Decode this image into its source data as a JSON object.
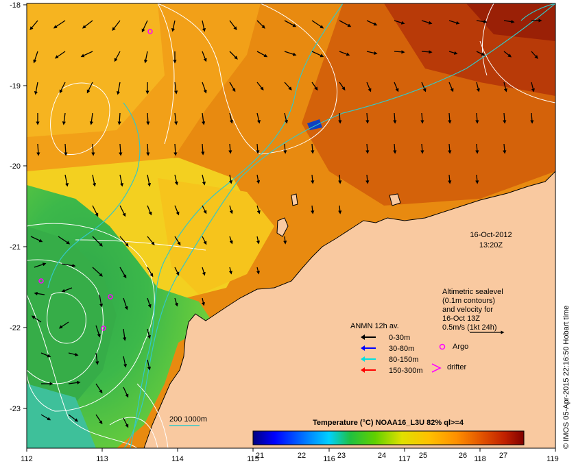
{
  "map": {
    "lon_ticks": [
      "112",
      "113",
      "114",
      "115",
      "116",
      "117",
      "118",
      "119"
    ],
    "lat_ticks": [
      "-18",
      "-19",
      "-20",
      "-21",
      "-22",
      "-23"
    ],
    "date_label": "16-Oct-2012",
    "time_label": "13:20Z",
    "credit": "© IMOS 05-Apr-2015 22:16:50 Hobart time",
    "colors": {
      "land": "#f9c9a0",
      "contour": "#ffffff",
      "isobath": "#33c8c8"
    }
  },
  "annotation": {
    "lines": [
      "Altimetric sealevel",
      "(0.1m contours)",
      "and velocity for",
      "16-Oct 13Z",
      "0.5m/s (1kt 24h)"
    ]
  },
  "legend": {
    "title": "ANMN 12h av.",
    "items": [
      {
        "label": "0-30m",
        "color": "#000000"
      },
      {
        "label": "30-80m",
        "color": "#0000ff"
      },
      {
        "label": "80-150m",
        "color": "#00e0e0"
      },
      {
        "label": "150-300m",
        "color": "#ff0000"
      }
    ],
    "argo_label": "Argo",
    "drifter_label": "drifter",
    "argo_color": "#ff00ff",
    "drifter_color": "#ff00ff"
  },
  "isobath_legend": {
    "label": "200  1000m"
  },
  "colorbar": {
    "title": "Temperature (°C) NOAA16_L3U 82% ql>=4",
    "ticks": [
      "21",
      "22",
      "23",
      "24",
      "25",
      "26",
      "27"
    ],
    "stops": [
      "#00007f",
      "#0000ff",
      "#0080ff",
      "#00d0ff",
      "#20c040",
      "#60d000",
      "#e0e000",
      "#ffc000",
      "#ff9000",
      "#e05000",
      "#c02000",
      "#800000"
    ]
  }
}
